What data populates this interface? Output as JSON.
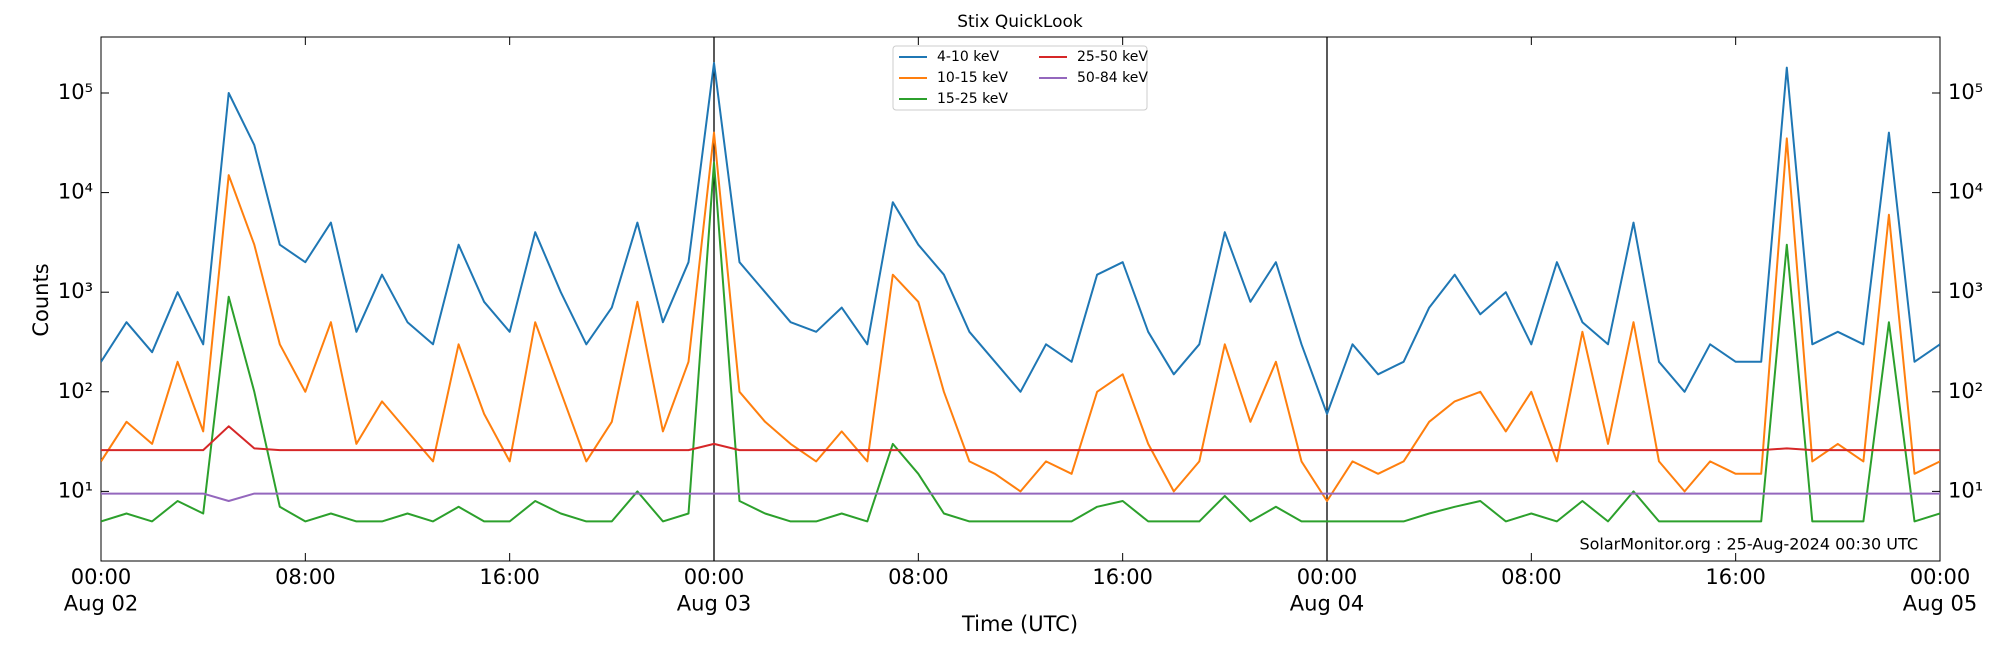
{
  "chart_data": {
    "type": "line",
    "title": "Stix QuickLook",
    "xlabel": "Time (UTC)",
    "ylabel": "Counts",
    "log_y": true,
    "annotation": "SolarMonitor.org : 25-Aug-2024 00:30 UTC",
    "legend": "upper center",
    "xlim": [
      "Aug 02 00:00",
      "Aug 05 00:00"
    ],
    "xticks": [
      {
        "value": "Aug 02 00:00",
        "label": "00:00\nAug 02"
      },
      {
        "value": "Aug 02 08:00",
        "label": "08:00"
      },
      {
        "value": "Aug 02 16:00",
        "label": "16:00"
      },
      {
        "value": "Aug 03 00:00",
        "label": "00:00\nAug 03"
      },
      {
        "value": "Aug 03 08:00",
        "label": "08:00"
      },
      {
        "value": "Aug 03 16:00",
        "label": "16:00"
      },
      {
        "value": "Aug 04 00:00",
        "label": "00:00\nAug 04"
      },
      {
        "value": "Aug 04 08:00",
        "label": "08:00"
      },
      {
        "value": "Aug 04 16:00",
        "label": "16:00"
      },
      {
        "value": "Aug 05 00:00",
        "label": "00:00\nAug 05"
      }
    ],
    "ylim": [
      2,
      365000
    ],
    "yticks": [
      {
        "value": 10,
        "label": "10¹"
      },
      {
        "value": 100,
        "label": "10²"
      },
      {
        "value": 1000,
        "label": "10³"
      },
      {
        "value": 10000,
        "label": "10⁴"
      },
      {
        "value": 100000,
        "label": "10⁵"
      }
    ],
    "x": [
      "Aug 02 00:00",
      "Aug 02 01:00",
      "Aug 02 02:00",
      "Aug 02 03:00",
      "Aug 02 04:00",
      "Aug 02 05:00",
      "Aug 02 06:00",
      "Aug 02 07:00",
      "Aug 02 08:00",
      "Aug 02 09:00",
      "Aug 02 10:00",
      "Aug 02 11:00",
      "Aug 02 12:00",
      "Aug 02 13:00",
      "Aug 02 14:00",
      "Aug 02 15:00",
      "Aug 02 16:00",
      "Aug 02 17:00",
      "Aug 02 18:00",
      "Aug 02 19:00",
      "Aug 02 20:00",
      "Aug 02 21:00",
      "Aug 02 22:00",
      "Aug 02 23:00",
      "Aug 03 00:00",
      "Aug 03 01:00",
      "Aug 03 02:00",
      "Aug 03 03:00",
      "Aug 03 04:00",
      "Aug 03 05:00",
      "Aug 03 06:00",
      "Aug 03 07:00",
      "Aug 03 08:00",
      "Aug 03 09:00",
      "Aug 03 10:00",
      "Aug 03 11:00",
      "Aug 03 12:00",
      "Aug 03 13:00",
      "Aug 03 14:00",
      "Aug 03 15:00",
      "Aug 03 16:00",
      "Aug 03 17:00",
      "Aug 03 18:00",
      "Aug 03 19:00",
      "Aug 03 20:00",
      "Aug 03 21:00",
      "Aug 03 22:00",
      "Aug 03 23:00",
      "Aug 04 00:00",
      "Aug 04 01:00",
      "Aug 04 02:00",
      "Aug 04 03:00",
      "Aug 04 04:00",
      "Aug 04 05:00",
      "Aug 04 06:00",
      "Aug 04 07:00",
      "Aug 04 08:00",
      "Aug 04 09:00",
      "Aug 04 10:00",
      "Aug 04 11:00",
      "Aug 04 12:00",
      "Aug 04 13:00",
      "Aug 04 14:00",
      "Aug 04 15:00",
      "Aug 04 16:00",
      "Aug 04 17:00",
      "Aug 04 18:00",
      "Aug 04 19:00",
      "Aug 04 20:00",
      "Aug 04 21:00",
      "Aug 04 22:00",
      "Aug 04 23:00",
      "Aug 05 00:00"
    ],
    "series": [
      {
        "name": "4-10 keV",
        "color": "#1f77b4",
        "values": [
          200,
          500,
          250,
          1000,
          300,
          100000,
          30000,
          3000,
          2000,
          5000,
          400,
          1500,
          500,
          300,
          3000,
          800,
          400,
          4000,
          1000,
          300,
          700,
          5000,
          500,
          2000,
          200000,
          2000,
          1000,
          500,
          400,
          700,
          300,
          8000,
          3000,
          1500,
          400,
          200,
          100,
          300,
          200,
          1500,
          2000,
          400,
          150,
          300,
          4000,
          800,
          2000,
          300,
          60,
          300,
          150,
          200,
          700,
          1500,
          600,
          1000,
          300,
          2000,
          500,
          300,
          5000,
          200,
          100,
          300,
          200,
          200,
          180000,
          300,
          400,
          300,
          40000,
          200,
          300
        ]
      },
      {
        "name": "10-15 keV",
        "color": "#ff7f0e",
        "values": [
          20,
          50,
          30,
          200,
          40,
          15000,
          3000,
          300,
          100,
          500,
          30,
          80,
          40,
          20,
          300,
          60,
          20,
          500,
          100,
          20,
          50,
          800,
          40,
          200,
          40000,
          100,
          50,
          30,
          20,
          40,
          20,
          1500,
          800,
          100,
          20,
          15,
          10,
          20,
          15,
          100,
          150,
          30,
          10,
          20,
          300,
          50,
          200,
          20,
          8,
          20,
          15,
          20,
          50,
          80,
          100,
          40,
          100,
          20,
          400,
          30,
          500,
          20,
          10,
          20,
          15,
          15,
          35000,
          20,
          30,
          20,
          6000,
          15,
          20
        ]
      },
      {
        "name": "15-25 keV",
        "color": "#2ca02c",
        "values": [
          5,
          6,
          5,
          8,
          6,
          900,
          100,
          7,
          5,
          6,
          5,
          5,
          6,
          5,
          7,
          5,
          5,
          8,
          6,
          5,
          5,
          10,
          5,
          6,
          20000,
          8,
          6,
          5,
          5,
          6,
          5,
          30,
          15,
          6,
          5,
          5,
          5,
          5,
          5,
          7,
          8,
          5,
          5,
          5,
          9,
          5,
          7,
          5,
          5,
          5,
          5,
          5,
          6,
          7,
          8,
          5,
          6,
          5,
          8,
          5,
          10,
          5,
          5,
          5,
          5,
          5,
          3000,
          5,
          5,
          5,
          500,
          5,
          6
        ]
      },
      {
        "name": "25-50 keV",
        "color": "#d62728",
        "values": [
          26,
          26,
          26,
          26,
          26,
          45,
          27,
          26,
          26,
          26,
          26,
          26,
          26,
          26,
          26,
          26,
          26,
          26,
          26,
          26,
          26,
          26,
          26,
          26,
          30,
          26,
          26,
          26,
          26,
          26,
          26,
          26,
          26,
          26,
          26,
          26,
          26,
          26,
          26,
          26,
          26,
          26,
          26,
          26,
          26,
          26,
          26,
          26,
          26,
          26,
          26,
          26,
          26,
          26,
          26,
          26,
          26,
          26,
          26,
          26,
          26,
          26,
          26,
          26,
          26,
          26,
          27,
          26,
          26,
          26,
          26,
          26,
          26
        ]
      },
      {
        "name": "50-84 keV",
        "color": "#9467bd",
        "values": [
          9.5,
          9.5,
          9.5,
          9.5,
          9.5,
          8,
          9.5,
          9.5,
          9.5,
          9.5,
          9.5,
          9.5,
          9.5,
          9.5,
          9.5,
          9.5,
          9.5,
          9.5,
          9.5,
          9.5,
          9.5,
          9.5,
          9.5,
          9.5,
          9.5,
          9.5,
          9.5,
          9.5,
          9.5,
          9.5,
          9.5,
          9.5,
          9.5,
          9.5,
          9.5,
          9.5,
          9.5,
          9.5,
          9.5,
          9.5,
          9.5,
          9.5,
          9.5,
          9.5,
          9.5,
          9.5,
          9.5,
          9.5,
          9.5,
          9.5,
          9.5,
          9.5,
          9.5,
          9.5,
          9.5,
          9.5,
          9.5,
          9.5,
          9.5,
          9.5,
          9.5,
          9.5,
          9.5,
          9.5,
          9.5,
          9.5,
          9.5,
          9.5,
          9.5,
          9.5,
          9.5,
          9.5,
          9.5
        ]
      }
    ]
  }
}
